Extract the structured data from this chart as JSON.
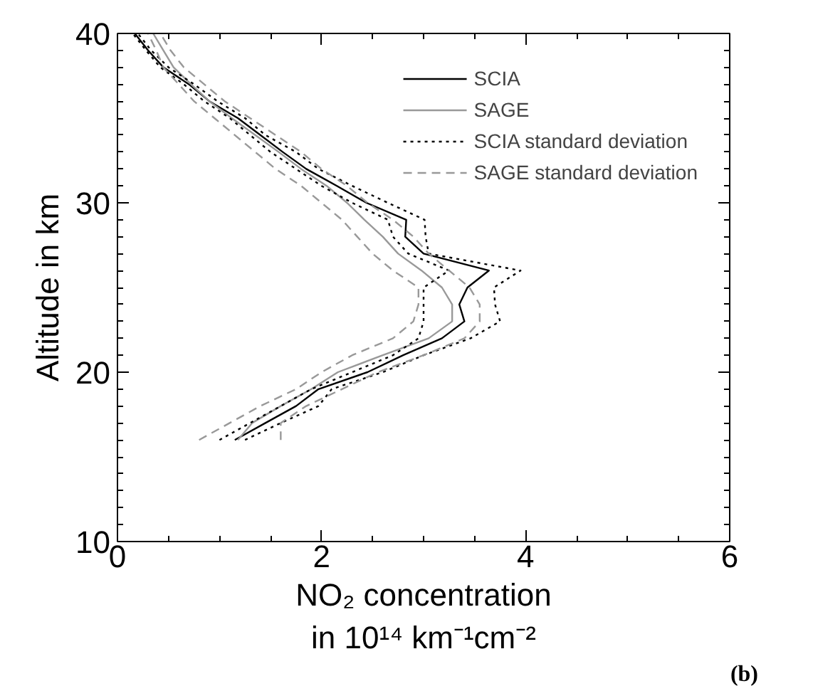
{
  "chart_data": {
    "type": "line",
    "xlabel": "NO₂ concentration\nin 10¹⁴ km⁻¹cm⁻²",
    "ylabel": "Altitude in km",
    "xlim": [
      0,
      6
    ],
    "xticks": [
      0,
      2,
      4,
      6
    ],
    "ylim": [
      10,
      40
    ],
    "yticks": [
      10,
      20,
      30,
      40
    ],
    "grid": false,
    "legend": "top right",
    "marker": "none",
    "annotations": [
      "(b)"
    ],
    "series": [
      {
        "name": "SCIA",
        "color": "#000000",
        "line_style": "solid",
        "x": [
          1.15,
          1.45,
          1.75,
          1.97,
          2.45,
          2.8,
          3.18,
          3.4,
          3.35,
          3.43,
          3.64,
          3.0,
          2.82,
          2.83,
          2.44,
          2.15,
          1.85,
          1.62,
          1.4,
          1.18,
          0.9,
          0.7,
          0.45,
          0.3,
          0.17
        ],
        "values": [
          16,
          17,
          18,
          19,
          20,
          21,
          22,
          23,
          24,
          25,
          26,
          27,
          28,
          29,
          30,
          31,
          32,
          33,
          34,
          35,
          36,
          37,
          38,
          39,
          40
        ]
      },
      {
        "name": "SAGE",
        "color": "#999999",
        "line_style": "solid",
        "x": [
          1.18,
          1.32,
          1.6,
          1.9,
          2.16,
          2.6,
          3.05,
          3.28,
          3.28,
          3.18,
          2.98,
          2.75,
          2.6,
          2.42,
          2.25,
          2.05,
          1.8,
          1.58,
          1.35,
          1.12,
          0.9,
          0.72,
          0.55,
          0.45,
          0.35
        ],
        "values": [
          16,
          17,
          18,
          19,
          20,
          21,
          22,
          23,
          24,
          25,
          26,
          27,
          28,
          29,
          30,
          31,
          32,
          33,
          34,
          35,
          36,
          37,
          38,
          39,
          40
        ]
      },
      {
        "name": "SCIA standard deviation",
        "color": "#000000",
        "line_style": "dotted",
        "x": [
          1.25,
          1.6,
          1.97,
          2.1,
          2.6,
          3.0,
          3.46,
          3.75,
          3.7,
          3.69,
          3.95,
          3.05,
          3.02,
          3.01,
          2.65,
          2.3,
          1.97,
          1.75,
          1.45,
          1.25,
          0.98,
          0.75,
          0.5,
          0.33,
          0.2
        ],
        "values": [
          16,
          17,
          18,
          19,
          20,
          21,
          22,
          23,
          24,
          25,
          26,
          27,
          28,
          29,
          30,
          31,
          32,
          33,
          34,
          35,
          36,
          37,
          38,
          39,
          40
        ]
      },
      {
        "color": "#000000",
        "line_style": "dotted",
        "x": [
          1.0,
          1.3,
          1.6,
          1.9,
          2.3,
          2.7,
          2.95,
          3.0,
          3.0,
          3.0,
          3.25,
          2.85,
          2.7,
          2.65,
          2.3,
          2.0,
          1.75,
          1.5,
          1.3,
          1.1,
          0.85,
          0.65,
          0.42,
          0.28,
          0.15
        ],
        "values": [
          16,
          17,
          18,
          19,
          20,
          21,
          22,
          23,
          24,
          25,
          26,
          27,
          28,
          29,
          30,
          31,
          32,
          33,
          34,
          35,
          36,
          37,
          38,
          39,
          40
        ]
      },
      {
        "name": "SAGE standard deviation",
        "color": "#999999",
        "line_style": "dashed",
        "x": [
          1.6,
          1.6,
          1.85,
          2.2,
          2.55,
          3.0,
          3.4,
          3.55,
          3.55,
          3.45,
          3.25,
          3.05,
          2.9,
          2.7,
          2.45,
          2.25,
          2.0,
          1.8,
          1.55,
          1.3,
          1.05,
          0.85,
          0.65,
          0.52,
          0.42
        ],
        "values": [
          16,
          17,
          18,
          19,
          20,
          21,
          22,
          23,
          24,
          25,
          26,
          27,
          28,
          29,
          30,
          31,
          32,
          33,
          34,
          35,
          36,
          37,
          38,
          39,
          40
        ]
      },
      {
        "color": "#999999",
        "line_style": "dashed",
        "x": [
          0.8,
          1.1,
          1.4,
          1.75,
          2.0,
          2.3,
          2.7,
          2.9,
          2.95,
          2.95,
          2.7,
          2.5,
          2.35,
          2.2,
          2.0,
          1.8,
          1.55,
          1.35,
          1.15,
          0.95,
          0.75,
          0.6,
          0.45,
          0.38,
          0.3
        ],
        "values": [
          16,
          17,
          18,
          19,
          20,
          21,
          22,
          23,
          24,
          25,
          26,
          27,
          28,
          29,
          30,
          31,
          32,
          33,
          34,
          35,
          36,
          37,
          38,
          39,
          40
        ]
      }
    ]
  }
}
